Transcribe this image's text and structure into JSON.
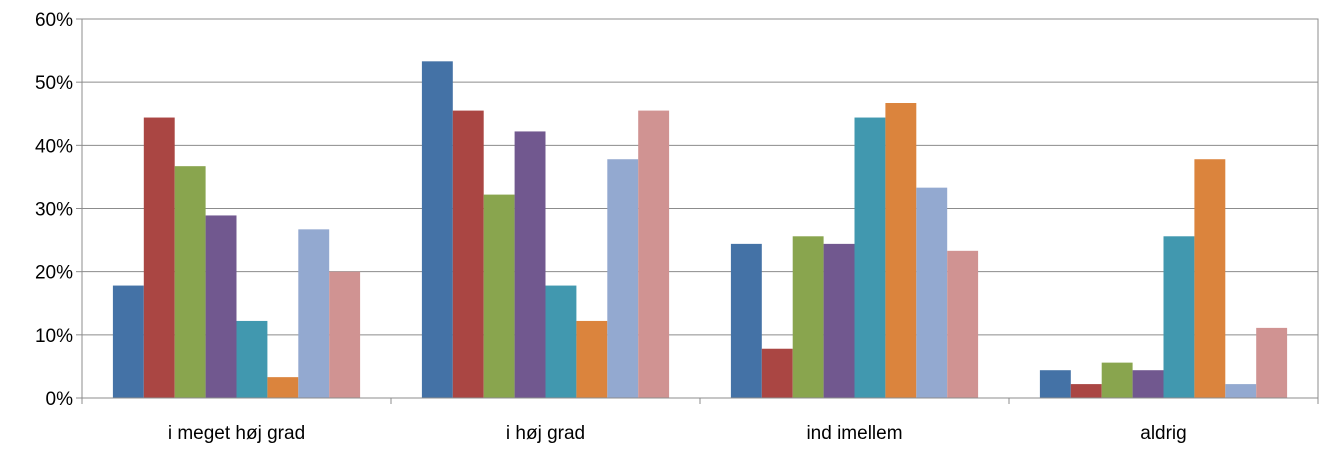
{
  "chart_data": {
    "type": "bar",
    "title": "",
    "xlabel": "",
    "ylabel": "",
    "ylim": [
      0,
      60
    ],
    "yticks": [
      0,
      10,
      20,
      30,
      40,
      50,
      60
    ],
    "ytick_labels": [
      "0%",
      "10%",
      "20%",
      "30%",
      "40%",
      "50%",
      "60%"
    ],
    "grid": true,
    "legend": "none",
    "categories": [
      "i meget høj grad",
      "i høj grad",
      "ind imellem",
      "aldrig"
    ],
    "series": [
      {
        "color": "#4472a6",
        "values": [
          17.8,
          53.3,
          24.4,
          4.4
        ]
      },
      {
        "color": "#aa4643",
        "values": [
          44.4,
          45.5,
          7.8,
          2.2
        ]
      },
      {
        "color": "#89a54e",
        "values": [
          36.7,
          32.2,
          25.6,
          5.6
        ]
      },
      {
        "color": "#71588f",
        "values": [
          28.9,
          42.2,
          24.4,
          4.4
        ]
      },
      {
        "color": "#4198af",
        "values": [
          12.2,
          17.8,
          44.4,
          25.6
        ]
      },
      {
        "color": "#db843d",
        "values": [
          3.3,
          12.2,
          46.7,
          37.8
        ]
      },
      {
        "color": "#93a9d0",
        "values": [
          26.7,
          37.8,
          33.3,
          2.2
        ]
      },
      {
        "color": "#d09392",
        "values": [
          20.0,
          45.5,
          23.3,
          11.1
        ]
      }
    ]
  }
}
